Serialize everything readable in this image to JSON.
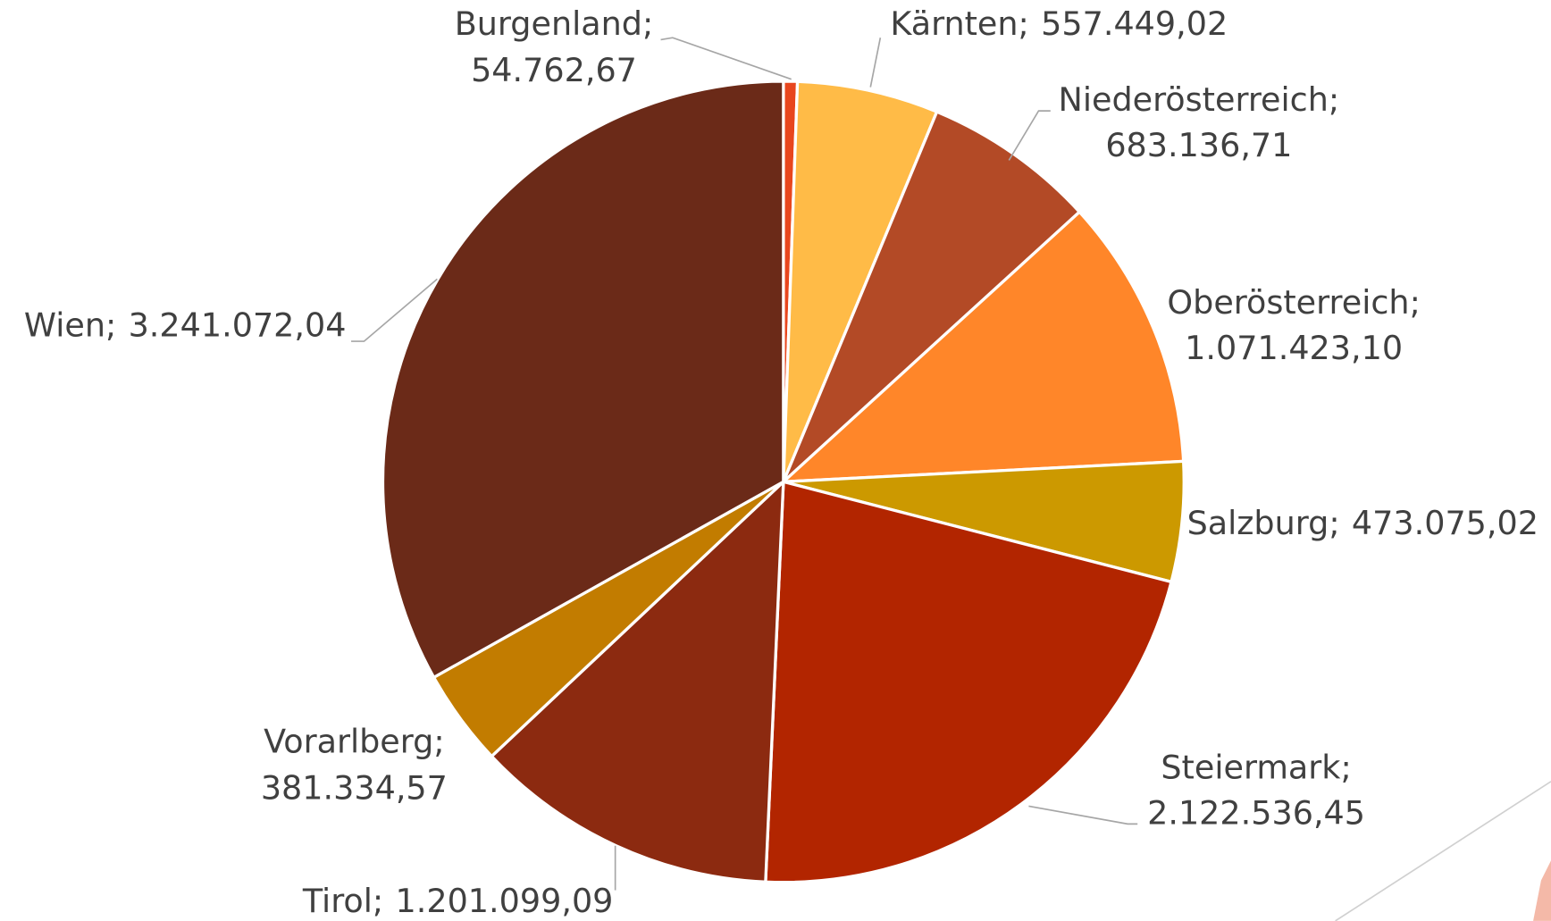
{
  "chart_data": {
    "type": "pie",
    "categories": [
      "Burgenland",
      "Kärnten",
      "Niederösterreich",
      "Oberösterreich",
      "Salzburg",
      "Steiermark",
      "Tirol",
      "Vorarlberg",
      "Wien"
    ],
    "values": [
      54762.67,
      557449.02,
      683136.71,
      1071423.1,
      473075.02,
      2122536.45,
      1201099.09,
      381334.57,
      3241072.04
    ],
    "value_labels": [
      "54.762,67",
      "557.449,02",
      "683.136,71",
      "1.071.423,10",
      "473.075,02",
      "2.122.536,45",
      "1.201.099,09",
      "381.334,57",
      "3.241.072,04"
    ],
    "label_separator": ";",
    "colors": [
      "#e8461e",
      "#ffbb47",
      "#b34a26",
      "#ff8629",
      "#cc9900",
      "#b22500",
      "#8c2a10",
      "#c27c00",
      "#6b2a18"
    ]
  }
}
